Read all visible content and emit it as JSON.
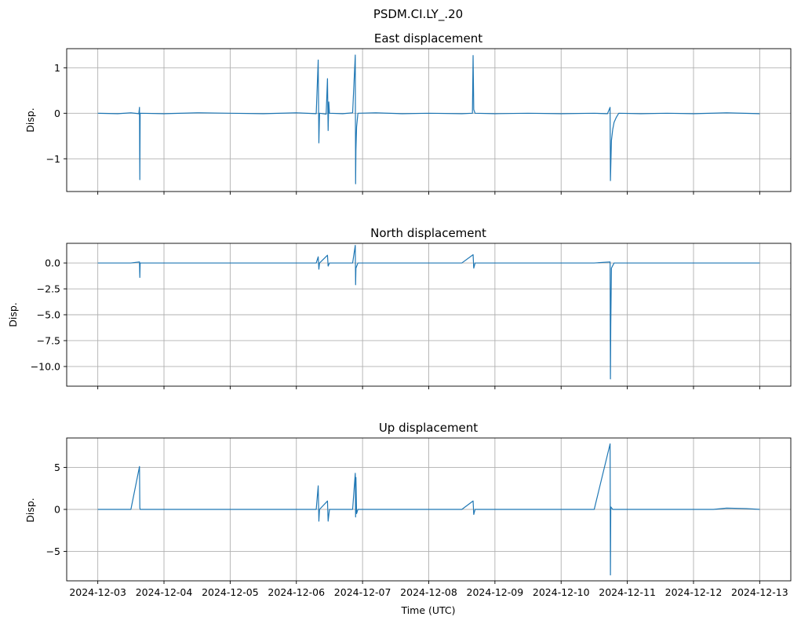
{
  "chart_data": {
    "suptitle": "PSDM.CI.LY_.20",
    "xlabel": "Time (UTC)",
    "x_tick_labels": [
      "2024-12-03",
      "2024-12-04",
      "2024-12-05",
      "2024-12-06",
      "2024-12-07",
      "2024-12-08",
      "2024-12-09",
      "2024-12-10",
      "2024-12-11",
      "2024-12-12",
      "2024-12-13"
    ],
    "xlim_days": [
      -0.47,
      10.47
    ],
    "panels": [
      {
        "type": "line",
        "title": "East displacement",
        "ylabel": "Disp.",
        "ylim": [
          -1.72,
          1.42
        ],
        "yticks": [
          1,
          0,
          -1
        ],
        "ytick_labels": [
          "1",
          "0",
          "−1"
        ],
        "grid": true,
        "series": {
          "color": "#1f77b4",
          "points": [
            [
              0.0,
              0.0
            ],
            [
              0.3,
              -0.01
            ],
            [
              0.5,
              0.01
            ],
            [
              0.62,
              -0.01
            ],
            [
              0.63,
              0.13
            ],
            [
              0.635,
              -1.46
            ],
            [
              0.64,
              0.0
            ],
            [
              1.0,
              -0.01
            ],
            [
              1.5,
              0.01
            ],
            [
              2.0,
              0.0
            ],
            [
              2.5,
              -0.01
            ],
            [
              3.0,
              0.01
            ],
            [
              3.3,
              -0.01
            ],
            [
              3.33,
              1.17
            ],
            [
              3.34,
              -0.65
            ],
            [
              3.35,
              0.0
            ],
            [
              3.45,
              -0.02
            ],
            [
              3.47,
              0.76
            ],
            [
              3.48,
              -0.38
            ],
            [
              3.49,
              0.25
            ],
            [
              3.5,
              0.0
            ],
            [
              3.7,
              -0.01
            ],
            [
              3.85,
              0.01
            ],
            [
              3.89,
              1.28
            ],
            [
              3.895,
              -1.55
            ],
            [
              3.9,
              -0.8
            ],
            [
              3.91,
              -0.3
            ],
            [
              3.93,
              0.0
            ],
            [
              4.2,
              0.01
            ],
            [
              4.6,
              -0.01
            ],
            [
              5.0,
              0.0
            ],
            [
              5.5,
              -0.01
            ],
            [
              5.66,
              0.0
            ],
            [
              5.67,
              1.27
            ],
            [
              5.68,
              0.08
            ],
            [
              5.7,
              0.0
            ],
            [
              6.0,
              -0.01
            ],
            [
              6.5,
              0.0
            ],
            [
              7.0,
              -0.01
            ],
            [
              7.5,
              0.0
            ],
            [
              7.7,
              -0.01
            ],
            [
              7.74,
              0.13
            ],
            [
              7.745,
              -1.48
            ],
            [
              7.76,
              -0.6
            ],
            [
              7.78,
              -0.35
            ],
            [
              7.8,
              -0.2
            ],
            [
              7.83,
              -0.1
            ],
            [
              7.87,
              0.0
            ],
            [
              8.2,
              -0.01
            ],
            [
              8.6,
              0.0
            ],
            [
              9.0,
              -0.01
            ],
            [
              9.5,
              0.01
            ],
            [
              10.0,
              -0.01
            ]
          ]
        }
      },
      {
        "type": "line",
        "title": "North displacement",
        "ylabel": "Disp.",
        "ylim": [
          -11.9,
          1.9
        ],
        "yticks": [
          0,
          -2.5,
          -5,
          -7.5,
          -10
        ],
        "ytick_labels": [
          "0.0",
          "−2.5",
          "−5.0",
          "−7.5",
          "−10.0"
        ],
        "grid": true,
        "series": {
          "color": "#1f77b4",
          "points": [
            [
              0.0,
              0.0
            ],
            [
              0.5,
              0.0
            ],
            [
              0.63,
              0.1
            ],
            [
              0.635,
              -1.4
            ],
            [
              0.64,
              0.0
            ],
            [
              1.5,
              0.0
            ],
            [
              2.5,
              0.0
            ],
            [
              3.3,
              0.0
            ],
            [
              3.33,
              0.6
            ],
            [
              3.34,
              -0.6
            ],
            [
              3.35,
              0.0
            ],
            [
              3.47,
              0.75
            ],
            [
              3.48,
              -0.3
            ],
            [
              3.5,
              0.0
            ],
            [
              3.85,
              0.0
            ],
            [
              3.89,
              1.7
            ],
            [
              3.895,
              -2.1
            ],
            [
              3.9,
              -0.5
            ],
            [
              3.93,
              0.0
            ],
            [
              4.5,
              0.0
            ],
            [
              5.5,
              0.0
            ],
            [
              5.67,
              0.8
            ],
            [
              5.68,
              -0.5
            ],
            [
              5.7,
              0.0
            ],
            [
              6.5,
              0.0
            ],
            [
              7.5,
              0.0
            ],
            [
              7.74,
              0.1
            ],
            [
              7.745,
              -11.2
            ],
            [
              7.75,
              -6.0
            ],
            [
              7.76,
              -0.5
            ],
            [
              7.8,
              0.0
            ],
            [
              8.5,
              0.0
            ],
            [
              9.5,
              0.0
            ],
            [
              10.0,
              0.0
            ]
          ]
        }
      },
      {
        "type": "line",
        "title": "Up displacement",
        "ylabel": "Disp.",
        "ylim": [
          -8.5,
          8.5
        ],
        "yticks": [
          5,
          0,
          -5
        ],
        "ytick_labels": [
          "5",
          "0",
          "−5"
        ],
        "grid": true,
        "series": {
          "color": "#1f77b4",
          "points": [
            [
              0.0,
              0.0
            ],
            [
              0.5,
              0.0
            ],
            [
              0.63,
              5.1
            ],
            [
              0.635,
              0.2
            ],
            [
              0.64,
              0.0
            ],
            [
              1.5,
              0.0
            ],
            [
              2.5,
              0.0
            ],
            [
              3.3,
              0.0
            ],
            [
              3.33,
              2.8
            ],
            [
              3.34,
              -1.4
            ],
            [
              3.35,
              0.0
            ],
            [
              3.47,
              1.0
            ],
            [
              3.48,
              -1.4
            ],
            [
              3.5,
              0.0
            ],
            [
              3.85,
              0.0
            ],
            [
              3.89,
              4.3
            ],
            [
              3.895,
              -0.9
            ],
            [
              3.9,
              3.8
            ],
            [
              3.91,
              -0.5
            ],
            [
              3.93,
              0.0
            ],
            [
              4.5,
              0.0
            ],
            [
              5.5,
              0.0
            ],
            [
              5.67,
              1.0
            ],
            [
              5.68,
              -0.6
            ],
            [
              5.7,
              0.0
            ],
            [
              6.5,
              0.0
            ],
            [
              7.5,
              0.0
            ],
            [
              7.74,
              7.8
            ],
            [
              7.745,
              -7.8
            ],
            [
              7.75,
              0.3
            ],
            [
              7.78,
              0.0
            ],
            [
              8.5,
              0.0
            ],
            [
              9.3,
              0.0
            ],
            [
              9.5,
              0.15
            ],
            [
              9.8,
              0.1
            ],
            [
              10.0,
              0.0
            ]
          ]
        }
      }
    ]
  }
}
